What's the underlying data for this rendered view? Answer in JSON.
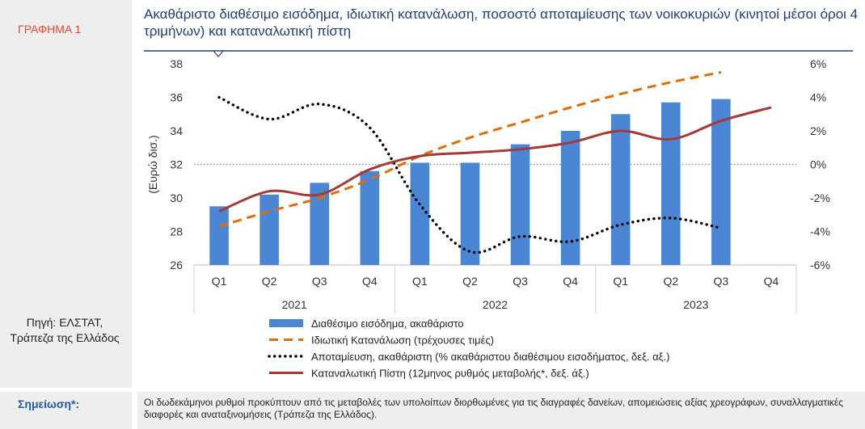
{
  "figure_label": "ΓΡΑΦΗΜΑ 1",
  "source": "Πηγή: ΕΛΣΤΑΤ, Τράπεζα της Ελλάδος",
  "note_label": "Σημείωση*:",
  "note_text": "Οι δωδεκάμηνοι ρυθμοί προκύπτουν από τις μεταβολές των υπολοίπων διορθωμένες για τις διαγραφές δανείων, απομειώσεις αξίας χρεογράφων, συναλλαγματικές διαφορές και αναταξινομήσεις (Τράπεζα της Ελλάδος).",
  "colors": {
    "bars": "#4a86d4",
    "consumption": "#e36c09",
    "savings": "#000000",
    "credit": "#a33a35",
    "title": "#1f3f7a",
    "accent": "#e8472b",
    "note": "#1f5aa8"
  },
  "chart_data": {
    "type": "bar+line",
    "title": "Ακαθάριστο διαθέσιμο εισόδημα, ιδιωτική κατανάλωση, ποσοστό αποταμίευσης των νοικοκυριών (κινητοί μέσοι όροι 4 τριμήνων) και καταναλωτική πίστη",
    "ylabel": "(Ευρώ δισ.)",
    "ylim": [
      26,
      38
    ],
    "yticks": [
      "26",
      "28",
      "30",
      "32",
      "34",
      "36",
      "38"
    ],
    "y2lim": [
      -6,
      6
    ],
    "y2ticks": [
      "-6%",
      "-4%",
      "-2%",
      "0%",
      "2%",
      "4%",
      "6%"
    ],
    "categories": [
      "Q1",
      "Q2",
      "Q3",
      "Q4",
      "Q1",
      "Q2",
      "Q3",
      "Q4",
      "Q1",
      "Q2",
      "Q3",
      "Q4"
    ],
    "years": [
      "2021",
      "2022",
      "2023"
    ],
    "series": [
      {
        "name": "Διαθέσιμο εισόδημα, ακαθάριστο",
        "type": "bar",
        "axis": "left",
        "values": [
          29.5,
          30.2,
          30.9,
          31.6,
          32.1,
          32.1,
          33.2,
          34.0,
          35.0,
          35.7,
          35.9,
          null
        ]
      },
      {
        "name": "Ιδιωτική Κατανάλωση (τρέχουσες τιμές)",
        "type": "line",
        "style": "dashed",
        "axis": "left",
        "values": [
          28.3,
          29.2,
          30.0,
          31.1,
          32.5,
          33.6,
          34.5,
          35.4,
          36.2,
          36.9,
          37.5,
          null
        ]
      },
      {
        "name": "Αποταμίευση, ακαθάριστη (% ακαθάριστου διαθέσιμου εισοδήματος, δεξ. αξ.)",
        "type": "line",
        "style": "dotted",
        "axis": "right",
        "values": [
          4.0,
          2.7,
          3.6,
          2.2,
          -2.4,
          -5.2,
          -4.3,
          -4.6,
          -3.6,
          -3.2,
          -3.8,
          null
        ]
      },
      {
        "name": "Καταναλωτική Πίστη (12μηνος ρυθμός μεταβολής*, δεξ. άξ.)",
        "type": "line",
        "style": "solid",
        "axis": "right",
        "values": [
          -2.8,
          -1.6,
          -1.8,
          -0.3,
          0.5,
          0.7,
          0.9,
          1.3,
          2.0,
          1.5,
          2.6,
          3.4
        ]
      }
    ],
    "reference_line": {
      "axis": "right",
      "value": 0,
      "style": "dotted"
    },
    "grid": false,
    "legend_position": "bottom"
  }
}
